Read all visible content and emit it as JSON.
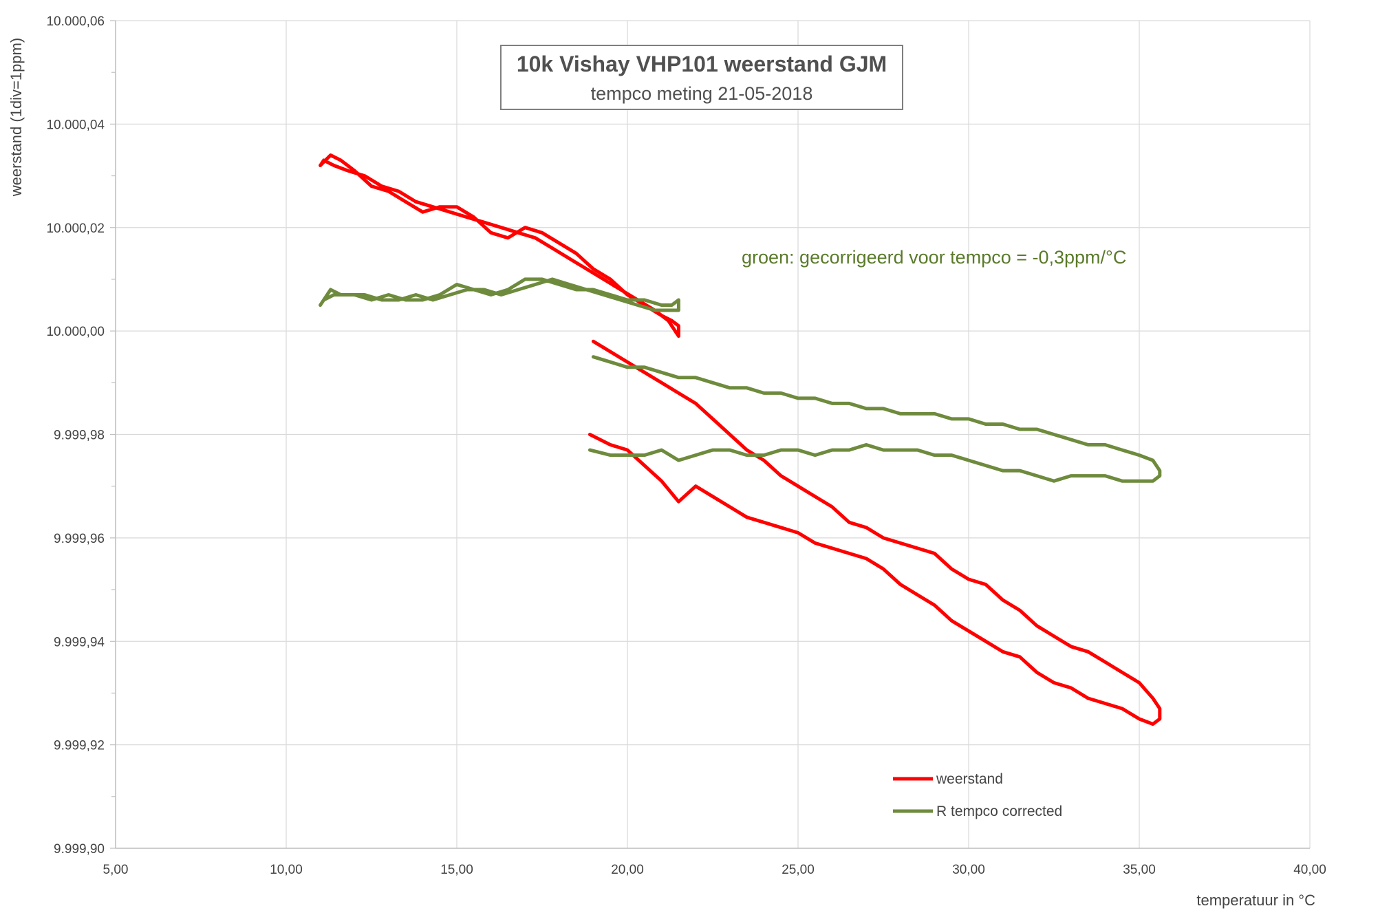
{
  "chart_data": {
    "type": "line",
    "title": "10k Vishay VHP101 weerstand GJM",
    "subtitle": "tempco meting 21-05-2018",
    "xlabel": "temperatuur in °C",
    "ylabel": "weerstand (1div=1ppm)",
    "annotation": "groen: gecorrigeerd voor tempco = -0,3ppm/°C",
    "xlim": [
      5,
      40
    ],
    "ylim": [
      9999.9,
      10000.06
    ],
    "x_ticks": [
      "5,00",
      "10,00",
      "15,00",
      "20,00",
      "25,00",
      "30,00",
      "35,00",
      "40,00"
    ],
    "y_ticks": [
      "9.999,90",
      "9.999,92",
      "9.999,94",
      "9.999,96",
      "9.999,98",
      "10.000,00",
      "10.000,02",
      "10.000,04",
      "10.000,06"
    ],
    "grid": true,
    "legend_position": "bottom-right",
    "series": [
      {
        "name": "weerstand",
        "color": "#ff0000",
        "x": [
          11.0,
          11.3,
          11.6,
          12.0,
          12.5,
          13.0,
          13.5,
          14.0,
          14.5,
          15.0,
          15.5,
          16.0,
          16.5,
          17.0,
          17.5,
          18.0,
          18.5,
          19.0,
          19.5,
          20.0,
          20.5,
          21.0,
          21.3,
          21.5,
          21.5,
          21.2,
          20.8,
          20.3,
          19.8,
          19.3,
          18.8,
          18.3,
          17.8,
          17.3,
          16.8,
          16.3,
          15.8,
          15.3,
          14.8,
          14.3,
          13.8,
          13.3,
          12.8,
          12.3,
          11.8,
          11.4,
          11.1,
          11.0,
          18.9,
          19.5,
          20.0,
          20.5,
          21.0,
          21.5,
          22.0,
          22.5,
          23.0,
          23.5,
          24.0,
          24.5,
          25.0,
          25.5,
          26.0,
          26.5,
          27.0,
          27.5,
          28.0,
          28.5,
          29.0,
          29.5,
          30.0,
          30.5,
          31.0,
          31.5,
          32.0,
          32.5,
          33.0,
          33.5,
          34.0,
          34.5,
          35.0,
          35.4,
          35.6,
          35.6,
          35.4,
          35.0,
          34.5,
          34.0,
          33.5,
          33.0,
          32.5,
          32.0,
          31.5,
          31.0,
          30.5,
          30.0,
          29.5,
          29.0,
          28.5,
          28.0,
          27.5,
          27.0,
          26.5,
          26.0,
          25.5,
          25.0,
          24.5,
          24.0,
          23.5,
          23.0,
          22.5,
          22.0,
          21.5,
          21.0,
          20.5,
          20.0,
          19.5,
          19.0
        ],
        "y": [
          10000.032,
          10000.034,
          10000.033,
          10000.031,
          10000.028,
          10000.027,
          10000.025,
          10000.023,
          10000.024,
          10000.024,
          10000.022,
          10000.019,
          10000.018,
          10000.02,
          10000.019,
          10000.017,
          10000.015,
          10000.012,
          10000.01,
          10000.007,
          10000.005,
          10000.003,
          10000.002,
          10000.001,
          9999.999,
          10000.002,
          10000.004,
          10000.006,
          10000.008,
          10000.01,
          10000.012,
          10000.014,
          10000.016,
          10000.018,
          10000.019,
          10000.02,
          10000.021,
          10000.022,
          10000.023,
          10000.024,
          10000.025,
          10000.027,
          10000.028,
          10000.03,
          10000.031,
          10000.032,
          10000.033,
          10000.032,
          9999.98,
          9999.978,
          9999.977,
          9999.974,
          9999.971,
          9999.967,
          9999.97,
          9999.968,
          9999.966,
          9999.964,
          9999.963,
          9999.962,
          9999.961,
          9999.959,
          9999.958,
          9999.957,
          9999.956,
          9999.954,
          9999.951,
          9999.949,
          9999.947,
          9999.944,
          9999.942,
          9999.94,
          9999.938,
          9999.937,
          9999.934,
          9999.932,
          9999.931,
          9999.929,
          9999.928,
          9999.927,
          9999.925,
          9999.924,
          9999.925,
          9999.927,
          9999.929,
          9999.932,
          9999.934,
          9999.936,
          9999.938,
          9999.939,
          9999.941,
          9999.943,
          9999.946,
          9999.948,
          9999.951,
          9999.952,
          9999.954,
          9999.957,
          9999.958,
          9999.959,
          9999.96,
          9999.962,
          9999.963,
          9999.966,
          9999.968,
          9999.97,
          9999.972,
          9999.975,
          9999.977,
          9999.98,
          9999.983,
          9999.986,
          9999.988,
          9999.99,
          9999.992,
          9999.994,
          9999.996,
          9999.998
        ]
      },
      {
        "name": "R tempco corrected",
        "color": "#6e8b3d",
        "x": [
          11.0,
          11.3,
          11.6,
          12.0,
          12.5,
          13.0,
          13.5,
          14.0,
          14.5,
          15.0,
          15.5,
          16.0,
          16.5,
          17.0,
          17.5,
          18.0,
          18.5,
          19.0,
          19.5,
          20.0,
          20.5,
          21.0,
          21.3,
          21.5,
          21.5,
          21.2,
          20.8,
          20.3,
          19.8,
          19.3,
          18.8,
          18.3,
          17.8,
          17.3,
          16.8,
          16.3,
          15.8,
          15.3,
          14.8,
          14.3,
          13.8,
          13.3,
          12.8,
          12.3,
          11.8,
          11.4,
          11.1,
          11.0,
          18.9,
          19.5,
          20.0,
          20.5,
          21.0,
          21.5,
          22.0,
          22.5,
          23.0,
          23.5,
          24.0,
          24.5,
          25.0,
          25.5,
          26.0,
          26.5,
          27.0,
          27.5,
          28.0,
          28.5,
          29.0,
          29.5,
          30.0,
          30.5,
          31.0,
          31.5,
          32.0,
          32.5,
          33.0,
          33.5,
          34.0,
          34.5,
          35.0,
          35.4,
          35.6,
          35.6,
          35.4,
          35.0,
          34.5,
          34.0,
          33.5,
          33.0,
          32.5,
          32.0,
          31.5,
          31.0,
          30.5,
          30.0,
          29.5,
          29.0,
          28.5,
          28.0,
          27.5,
          27.0,
          26.5,
          26.0,
          25.5,
          25.0,
          24.5,
          24.0,
          23.5,
          23.0,
          22.5,
          22.0,
          21.5,
          21.0,
          20.5,
          20.0,
          19.5,
          19.0
        ],
        "y": [
          10000.005,
          10000.008,
          10000.007,
          10000.007,
          10000.006,
          10000.007,
          10000.006,
          10000.006,
          10000.007,
          10000.009,
          10000.008,
          10000.007,
          10000.008,
          10000.01,
          10000.01,
          10000.009,
          10000.008,
          10000.008,
          10000.007,
          10000.006,
          10000.006,
          10000.005,
          10000.005,
          10000.006,
          10000.004,
          10000.004,
          10000.004,
          10000.005,
          10000.006,
          10000.007,
          10000.008,
          10000.009,
          10000.01,
          10000.009,
          10000.008,
          10000.007,
          10000.008,
          10000.008,
          10000.007,
          10000.006,
          10000.007,
          10000.006,
          10000.006,
          10000.007,
          10000.007,
          10000.007,
          10000.006,
          10000.005,
          9999.977,
          9999.976,
          9999.976,
          9999.976,
          9999.977,
          9999.975,
          9999.976,
          9999.977,
          9999.977,
          9999.976,
          9999.976,
          9999.977,
          9999.977,
          9999.976,
          9999.977,
          9999.977,
          9999.978,
          9999.977,
          9999.977,
          9999.977,
          9999.976,
          9999.976,
          9999.975,
          9999.974,
          9999.973,
          9999.973,
          9999.972,
          9999.971,
          9999.972,
          9999.972,
          9999.972,
          9999.971,
          9999.971,
          9999.971,
          9999.972,
          9999.973,
          9999.975,
          9999.976,
          9999.977,
          9999.978,
          9999.978,
          9999.979,
          9999.98,
          9999.981,
          9999.981,
          9999.982,
          9999.982,
          9999.983,
          9999.983,
          9999.984,
          9999.984,
          9999.984,
          9999.985,
          9999.985,
          9999.986,
          9999.986,
          9999.987,
          9999.987,
          9999.988,
          9999.988,
          9999.989,
          9999.989,
          9999.99,
          9999.991,
          9999.991,
          9999.992,
          9999.993,
          9999.993,
          9999.994,
          9999.995
        ]
      }
    ]
  }
}
